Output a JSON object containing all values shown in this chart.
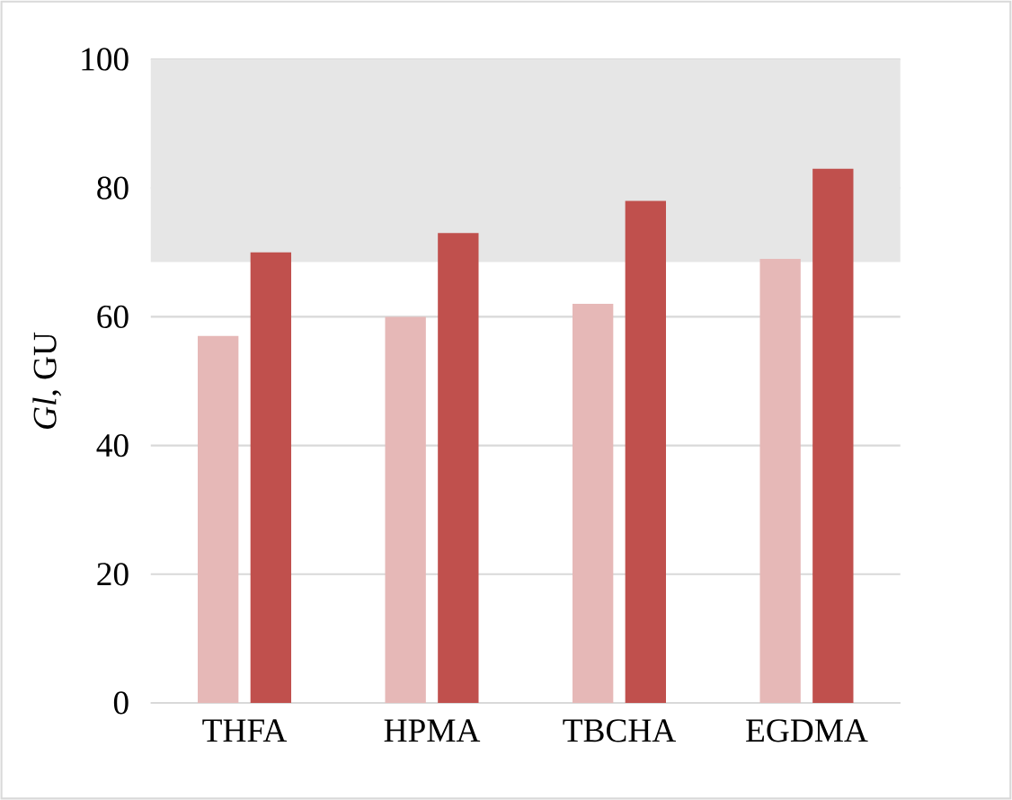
{
  "chart_data": {
    "type": "bar",
    "ylabel": "*Gl*, GU",
    "categories": [
      "THFA",
      "HPMA",
      "TBCHA",
      "EGDMA"
    ],
    "series": [
      {
        "color": "#e6b8b7",
        "values": [
          57,
          60,
          62,
          69
        ]
      },
      {
        "color": "#c0504d",
        "values": [
          70,
          73,
          78,
          83
        ]
      }
    ],
    "ylim": [
      0,
      100
    ],
    "yticks": [
      0,
      20,
      40,
      60,
      80,
      100
    ],
    "grid": "y",
    "bands": [
      {
        "axis": "y",
        "from": 68.5,
        "to": 100,
        "color": "#e6e6e6"
      }
    ]
  }
}
